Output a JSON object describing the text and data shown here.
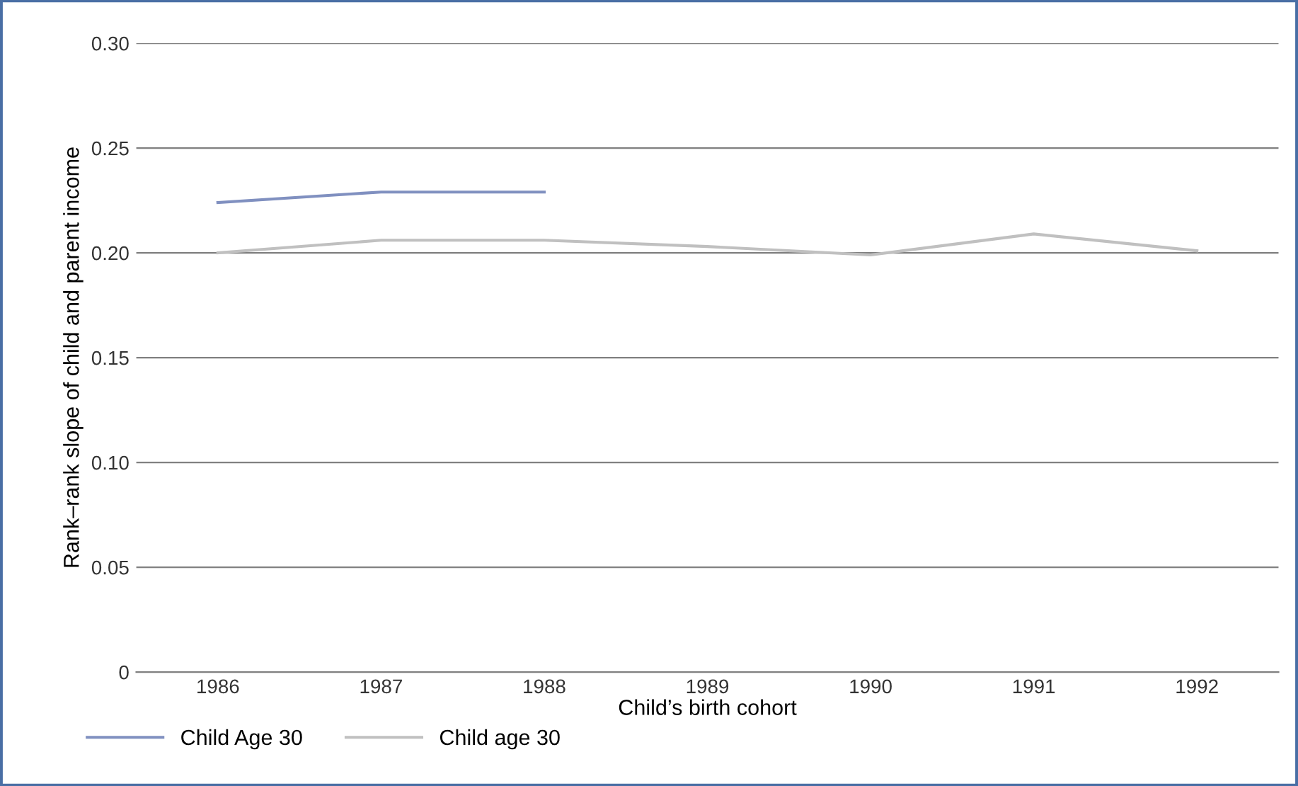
{
  "chart_data": {
    "type": "line",
    "xlabel": "Child’s birth cohort",
    "ylabel": "Rank–rank slope of child and parent income",
    "categories": [
      "1986",
      "1987",
      "1988",
      "1989",
      "1990",
      "1991",
      "1992"
    ],
    "series": [
      {
        "name": "Child Age 30",
        "color": "#8090c0",
        "values": [
          0.224,
          0.229,
          0.229,
          null,
          null,
          null,
          null
        ]
      },
      {
        "name": "Child age 30",
        "color": "#c0c0c0",
        "values": [
          0.2,
          0.206,
          0.206,
          0.203,
          0.199,
          0.209,
          0.201
        ]
      }
    ],
    "ylim": [
      0,
      0.3
    ],
    "yticks": [
      "0",
      {
        "value": 0.05,
        "label": "0.05"
      },
      {
        "value": 0.1,
        "label": "0.10"
      },
      {
        "value": 0.15,
        "label": "0.15"
      },
      {
        "value": 0.2,
        "label": "0.20"
      },
      {
        "value": 0.25,
        "label": "0.25"
      },
      {
        "value": 0.3,
        "label": "0.30"
      }
    ],
    "grid": "y",
    "legend": "bottom left",
    "marker": "none",
    "line_style": "solid"
  }
}
